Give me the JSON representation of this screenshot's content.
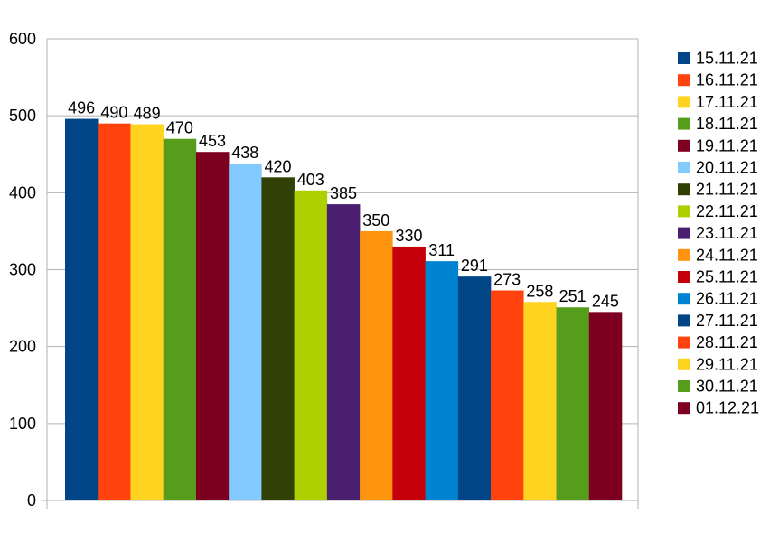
{
  "chart_data": {
    "type": "bar",
    "categories": [
      "15.11.21",
      "16.11.21",
      "17.11.21",
      "18.11.21",
      "19.11.21",
      "20.11.21",
      "21.11.21",
      "22.11.21",
      "23.11.21",
      "24.11.21",
      "25.11.21",
      "26.11.21",
      "27.11.21",
      "28.11.21",
      "29.11.21",
      "30.11.21",
      "01.12.21"
    ],
    "values": [
      496,
      490,
      489,
      470,
      453,
      438,
      420,
      403,
      385,
      350,
      330,
      311,
      291,
      273,
      258,
      251,
      245
    ],
    "colors": [
      "#004586",
      "#ff420e",
      "#ffd320",
      "#579d1c",
      "#7e0021",
      "#83caff",
      "#314004",
      "#aecf00",
      "#4b1f6f",
      "#ff950e",
      "#c5000b",
      "#0084d1",
      "#004586",
      "#ff420e",
      "#ffd320",
      "#579d1c",
      "#7e0021"
    ],
    "ylim": [
      0,
      600
    ],
    "yticks": [
      0,
      100,
      200,
      300,
      400,
      500,
      600
    ],
    "grid": "horizontal",
    "legend": "right",
    "data_labels": true,
    "title": "",
    "xlabel": "",
    "ylabel": ""
  }
}
